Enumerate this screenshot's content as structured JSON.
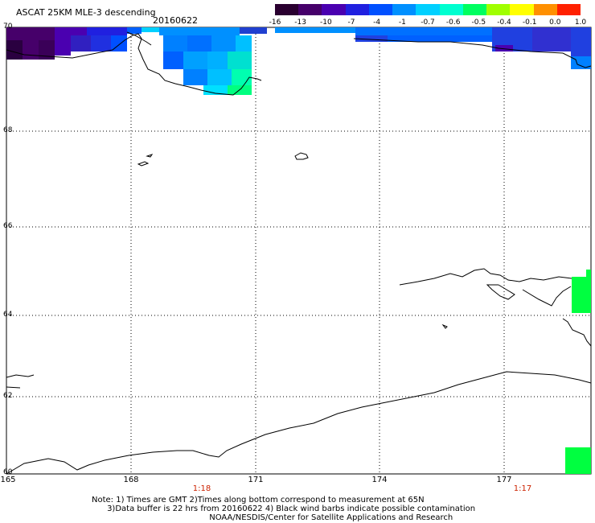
{
  "header": {
    "title": "ASCAT 25KM MLE-3 descending",
    "date": "20160622"
  },
  "colorbar": {
    "labels": [
      "-16",
      "-13",
      "-10",
      "-7",
      "-4",
      "-1",
      "-0.7",
      "-0.6",
      "-0.5",
      "-0.4",
      "-0.1",
      "0.0",
      "1.0"
    ],
    "colors": [
      "#2a0030",
      "#46006a",
      "#4a00b0",
      "#2020e0",
      "#0050ff",
      "#0090ff",
      "#00d0ff",
      "#00ffd0",
      "#00ff60",
      "#a0ff00",
      "#ffff00",
      "#ff9000",
      "#ff2000"
    ]
  },
  "axes": {
    "lat_labels": [
      "70",
      "68",
      "66",
      "64",
      "62",
      "60"
    ],
    "lon_labels": [
      "165",
      "168",
      "171",
      "174",
      "177"
    ]
  },
  "times": {
    "t1": "1:18",
    "t2": "1:17"
  },
  "notes": {
    "line1": "Note: 1) Times are GMT 2)Times along bottom correspond to measurement at 65N",
    "line2": "      3)Data buffer is 22 hrs from 20160622 4) Black wind barbs indicate possible contamination",
    "line3": "                                              NOAA/NESDIS/Center for Satellite Applications and Research"
  }
}
